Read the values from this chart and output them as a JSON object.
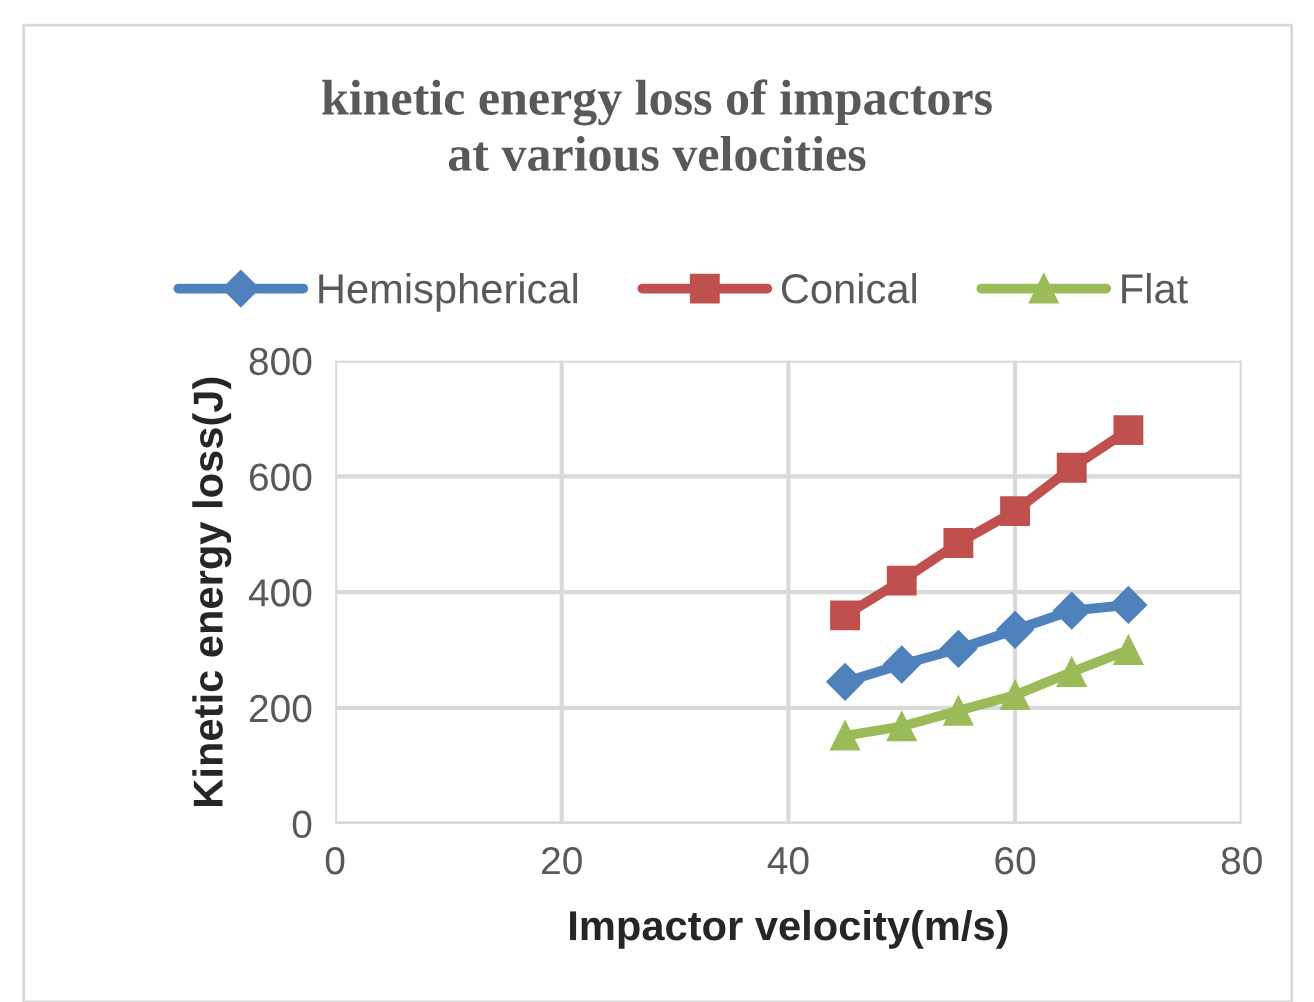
{
  "chart_data": {
    "type": "line",
    "title": "kinetic energy loss of impactors\nat various velocities",
    "xlabel": "Impactor velocity(m/s)",
    "ylabel": "Kinetic energy loss(J)",
    "x": [
      45,
      50,
      55,
      60,
      65,
      70
    ],
    "series": [
      {
        "name": "Hemispherical",
        "color": "#4f81bd",
        "marker": "diamond",
        "values": [
          245,
          275,
          302,
          335,
          368,
          378
        ]
      },
      {
        "name": "Conical",
        "color": "#c0504d",
        "marker": "square",
        "values": [
          360,
          420,
          485,
          540,
          615,
          680
        ]
      },
      {
        "name": "Flat",
        "color": "#9bbb59",
        "marker": "triangle",
        "values": [
          152,
          168,
          195,
          222,
          262,
          300
        ]
      }
    ],
    "xlim": [
      0,
      80
    ],
    "xticks": [
      0,
      20,
      40,
      60,
      80
    ],
    "ylim": [
      0,
      800
    ],
    "yticks": [
      0,
      200,
      400,
      600,
      800
    ],
    "grid": true,
    "legend": "top",
    "line_style": "solid"
  }
}
